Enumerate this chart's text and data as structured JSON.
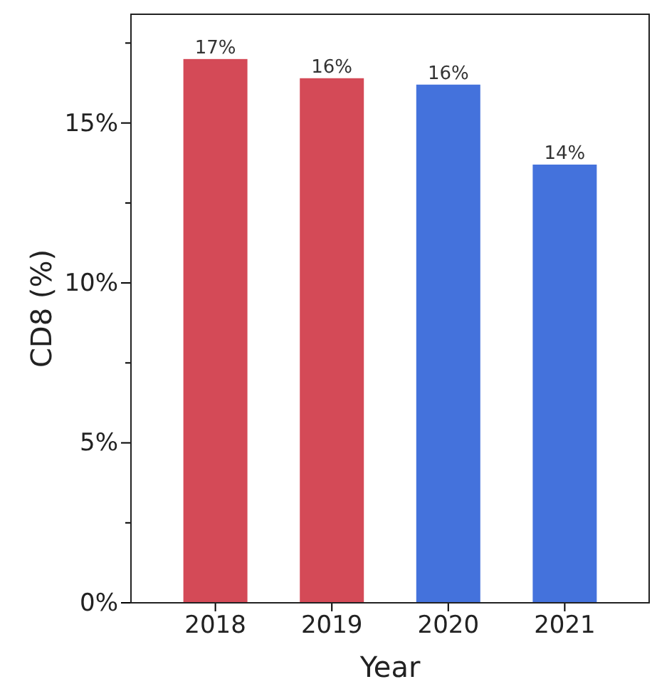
{
  "chart_data": {
    "type": "bar",
    "xlabel": "Year",
    "ylabel": "CD8 (%)",
    "categories": [
      "2018",
      "2019",
      "2020",
      "2021"
    ],
    "values": [
      17.0,
      16.4,
      16.2,
      13.7
    ],
    "value_labels": [
      "17%",
      "16%",
      "16%",
      "14%"
    ],
    "colors": [
      "#d44a57",
      "#d44a57",
      "#4472dc",
      "#4472dc"
    ],
    "ylim": [
      0,
      18.4
    ],
    "yticks": [
      {
        "value": 0,
        "label": "0%"
      },
      {
        "value": 2.5,
        "label": null
      },
      {
        "value": 5,
        "label": "5%"
      },
      {
        "value": 7.5,
        "label": null
      },
      {
        "value": 10,
        "label": "10%"
      },
      {
        "value": 12.5,
        "label": null
      },
      {
        "value": 15,
        "label": "15%"
      },
      {
        "value": 17.5,
        "label": null
      }
    ],
    "grid": false
  }
}
